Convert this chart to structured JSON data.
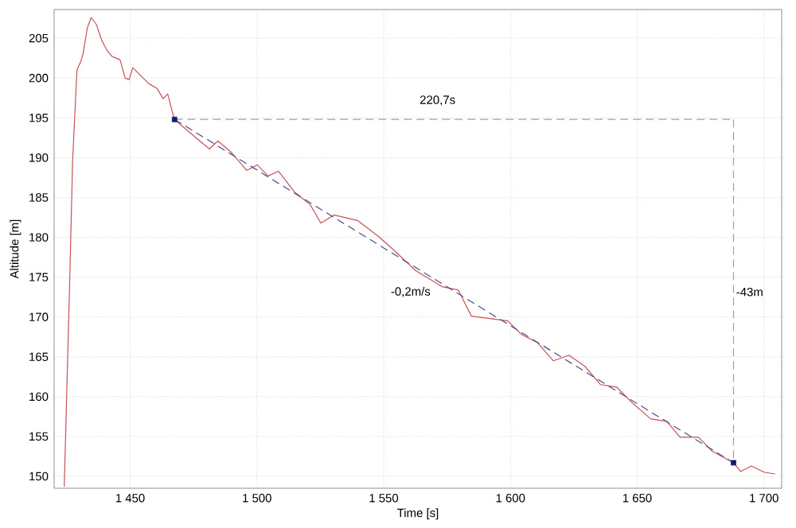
{
  "chart_data": {
    "type": "line",
    "xlabel": "Time [s]",
    "ylabel": "Altitude [m]",
    "xlim": [
      1420,
      1707
    ],
    "ylim": [
      148.5,
      208.6
    ],
    "xticks": [
      {
        "value": 1450,
        "label": "1 450"
      },
      {
        "value": 1500,
        "label": "1 500"
      },
      {
        "value": 1550,
        "label": "1 550"
      },
      {
        "value": 1600,
        "label": "1 600"
      },
      {
        "value": 1650,
        "label": "1 650"
      },
      {
        "value": 1700,
        "label": "1 700"
      }
    ],
    "yticks": [
      150,
      155,
      160,
      165,
      170,
      175,
      180,
      185,
      190,
      195,
      200,
      205
    ],
    "grid": true,
    "series": [
      {
        "color": "#c8505a",
        "line_style": "solid",
        "x": [
          1424,
          1426.3,
          1427.3,
          1429,
          1430.4,
          1431.4,
          1433.1,
          1434.6,
          1436.7,
          1438.8,
          1440.8,
          1442.9,
          1446,
          1448,
          1449.6,
          1451,
          1454.2,
          1457.3,
          1460.6,
          1463,
          1464.8,
          1466.4,
          1467.5,
          1476.3,
          1481.3,
          1484.6,
          1489.8,
          1496,
          1500.2,
          1504.4,
          1508.5,
          1514.8,
          1521,
          1525.2,
          1530.4,
          1539.8,
          1548,
          1554,
          1562.7,
          1573.1,
          1579.4,
          1584.6,
          1592,
          1599,
          1604.4,
          1610.6,
          1616.9,
          1623.1,
          1629.4,
          1635.6,
          1641.9,
          1648.1,
          1655.4,
          1661.7,
          1666.9,
          1674.2,
          1679.4,
          1688,
          1690.8,
          1695,
          1700.2,
          1704.4
        ],
        "values": [
          148.7,
          176.4,
          189.7,
          201,
          202,
          203,
          206.3,
          207.6,
          206.7,
          204.7,
          203.5,
          202.7,
          202.3,
          200,
          199.8,
          201.3,
          200.3,
          199.3,
          198.7,
          197.4,
          198,
          196,
          194.8,
          192.4,
          191.1,
          192.1,
          190.7,
          188.4,
          189.1,
          187.7,
          188.3,
          185.7,
          184.1,
          181.8,
          182.8,
          182.1,
          180.1,
          178.4,
          175.8,
          173.8,
          173.4,
          170.1,
          169.8,
          169.5,
          167.8,
          166.8,
          164.5,
          165.2,
          163.8,
          161.5,
          161.2,
          159.2,
          157.2,
          156.9,
          154.9,
          154.9,
          153.2,
          151.7,
          150.6,
          151.3,
          150.5,
          150.3
        ]
      },
      {
        "type": "line",
        "color": "#a0a0a0",
        "line_style": "dashed",
        "x": [
          1467.5,
          1688
        ],
        "values": [
          194.8,
          194.8
        ]
      },
      {
        "type": "line",
        "color": "#a0a0a0",
        "line_style": "dashed",
        "x": [
          1688,
          1688
        ],
        "values": [
          194.8,
          151.7
        ]
      },
      {
        "type": "line",
        "color": "#4a4a90",
        "line_style": "dashed",
        "x": [
          1467.5,
          1688
        ],
        "values": [
          194.8,
          151.7
        ]
      },
      {
        "type": "scatter",
        "color": "#1a1a6e",
        "marker": "square",
        "x": [
          1467.5,
          1688
        ],
        "values": [
          194.8,
          151.7
        ]
      }
    ],
    "annotations": [
      "220,7s",
      "-0,2m/s",
      "-43m"
    ]
  }
}
